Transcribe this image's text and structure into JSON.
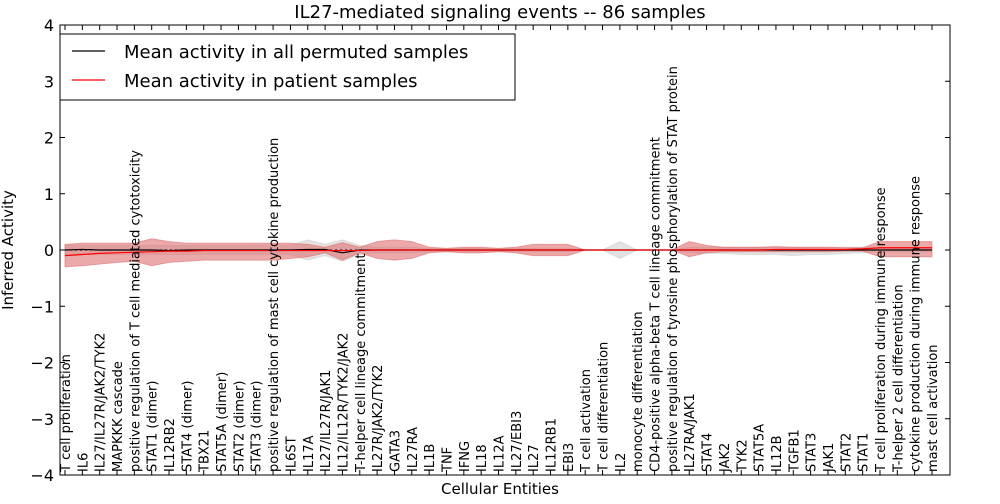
{
  "chart_data": {
    "type": "line",
    "title": "IL27-mediated signaling events -- 86 samples",
    "xlabel": "Cellular Entities",
    "ylabel": "Inferred Activity",
    "ylim": [
      -4,
      4
    ],
    "yticks": [
      -4,
      -3,
      -2,
      -1,
      0,
      1,
      2,
      3,
      4
    ],
    "grid": false,
    "legend_position": "top-left",
    "colors": {
      "patient": "#ff0000",
      "patient_band": "#e07070",
      "permuted": "#000000",
      "permuted_band": "#c8c8c8"
    },
    "categories": [
      "T cell proliferation",
      "IL6",
      "IL27/IL27R/JAK2/TYK2",
      "MAPKKK cascade",
      "positive regulation of T cell mediated cytotoxicity",
      "STAT1 (dimer)",
      "IL12RB2",
      "STAT4 (dimer)",
      "TBX21",
      "STAT5A (dimer)",
      "STAT2 (dimer)",
      "STAT3 (dimer)",
      "positive regulation of mast cell cytokine production",
      "IL6ST",
      "IL17A",
      "IL27/IL27R/JAK1",
      "IL12/IL12R/TYK2/JAK2",
      "T-helper cell lineage commitment",
      "IL27R/JAK2/TYK2",
      "GATA3",
      "IL27RA",
      "IL1B",
      "TNF",
      "IFNG",
      "IL18",
      "IL12A",
      "IL27/EBI3",
      "IL27",
      "IL12RB1",
      "EBI3",
      "T cell activation",
      "T cell differentiation",
      "IL2",
      "monocyte differentiation",
      "CD4-positive alpha-beta T cell lineage commitment",
      "positive regulation of tyrosine phosphorylation of STAT protein",
      "IL27RA/JAK1",
      "STAT4",
      "JAK2",
      "TYK2",
      "STAT5A",
      "IL12B",
      "TGFB1",
      "STAT3",
      "JAK1",
      "STAT2",
      "STAT1",
      "T cell proliferation during immune response",
      "T-helper 2 cell differentiation",
      "cytokine production during immune response",
      "mast cell activation"
    ],
    "series": [
      {
        "name": "Mean activity in all permuted samples",
        "values": [
          0,
          0.01,
          0,
          0,
          0,
          0,
          -0.01,
          0,
          0,
          0,
          0,
          0,
          0,
          0,
          0.01,
          0.01,
          -0.05,
          0,
          0,
          0,
          0,
          0,
          0,
          0,
          0,
          0,
          0,
          0,
          0,
          0,
          0,
          0,
          0,
          0,
          0,
          0,
          0,
          0,
          0,
          0,
          0,
          0,
          0,
          0,
          0,
          0,
          0,
          0,
          0,
          0,
          0
        ],
        "lower": [
          -0.08,
          -0.08,
          -0.08,
          -0.08,
          -0.08,
          -0.08,
          -0.08,
          -0.08,
          -0.08,
          -0.08,
          -0.08,
          -0.08,
          -0.08,
          -0.08,
          -0.18,
          -0.1,
          -0.2,
          -0.08,
          -0.05,
          -0.05,
          -0.05,
          -0.03,
          -0.03,
          -0.03,
          -0.03,
          -0.03,
          -0.03,
          -0.03,
          -0.03,
          -0.03,
          0,
          0,
          -0.15,
          0,
          0,
          0,
          -0.05,
          -0.06,
          -0.06,
          -0.08,
          -0.08,
          -0.08,
          -0.1,
          -0.08,
          -0.08,
          -0.06,
          -0.05,
          -0.03,
          -0.03,
          -0.03,
          -0.03
        ],
        "upper": [
          0.08,
          0.08,
          0.08,
          0.08,
          0.08,
          0.08,
          0.08,
          0.08,
          0.08,
          0.08,
          0.08,
          0.08,
          0.08,
          0.08,
          0.18,
          0.1,
          0.18,
          0.08,
          0.05,
          0.05,
          0.05,
          0.03,
          0.03,
          0.03,
          0.03,
          0.03,
          0.03,
          0.03,
          0.03,
          0.03,
          0,
          0,
          0.15,
          0,
          0,
          0,
          0.05,
          0.05,
          0.05,
          0.05,
          0.05,
          0.05,
          0.05,
          0.05,
          0.05,
          0.05,
          0.05,
          0.03,
          0.03,
          0.03,
          0.03
        ]
      },
      {
        "name": "Mean activity in patient samples",
        "values": [
          -0.1,
          -0.08,
          -0.06,
          -0.05,
          -0.04,
          -0.03,
          -0.02,
          -0.02,
          -0.01,
          -0.01,
          -0.01,
          -0.01,
          -0.01,
          -0.01,
          -0.01,
          -0.01,
          -0.01,
          -0.01,
          0,
          0,
          0,
          0,
          0,
          0,
          0,
          0,
          0,
          0,
          0,
          0,
          0,
          0,
          0,
          0,
          0,
          0,
          0,
          0,
          0,
          0,
          0,
          0.01,
          0.01,
          0.01,
          0.01,
          0.01,
          0.02,
          0.04,
          0.04,
          0.04,
          0.04
        ],
        "lower": [
          -0.3,
          -0.28,
          -0.25,
          -0.22,
          -0.2,
          -0.28,
          -0.22,
          -0.2,
          -0.18,
          -0.18,
          -0.18,
          -0.18,
          -0.18,
          -0.15,
          -0.12,
          -0.05,
          -0.18,
          -0.05,
          -0.15,
          -0.18,
          -0.15,
          -0.05,
          -0.03,
          -0.05,
          -0.05,
          -0.03,
          -0.05,
          -0.1,
          -0.1,
          -0.1,
          0,
          0,
          0,
          0,
          0,
          0,
          -0.12,
          -0.05,
          -0.03,
          -0.03,
          -0.03,
          -0.03,
          -0.03,
          -0.03,
          -0.03,
          -0.02,
          -0.02,
          -0.12,
          -0.12,
          -0.12,
          -0.12
        ],
        "upper": [
          0.1,
          0.12,
          0.12,
          0.12,
          0.12,
          0.2,
          0.15,
          0.12,
          0.12,
          0.12,
          0.12,
          0.12,
          0.12,
          0.12,
          0.1,
          0.05,
          0.13,
          0.05,
          0.15,
          0.18,
          0.15,
          0.05,
          0.03,
          0.05,
          0.05,
          0.03,
          0.05,
          0.1,
          0.1,
          0.1,
          0,
          0,
          0,
          0,
          0,
          0,
          0.15,
          0.08,
          0.05,
          0.05,
          0.05,
          0.06,
          0.05,
          0.05,
          0.05,
          0.04,
          0.04,
          0.15,
          0.15,
          0.15,
          0.15
        ]
      }
    ]
  }
}
